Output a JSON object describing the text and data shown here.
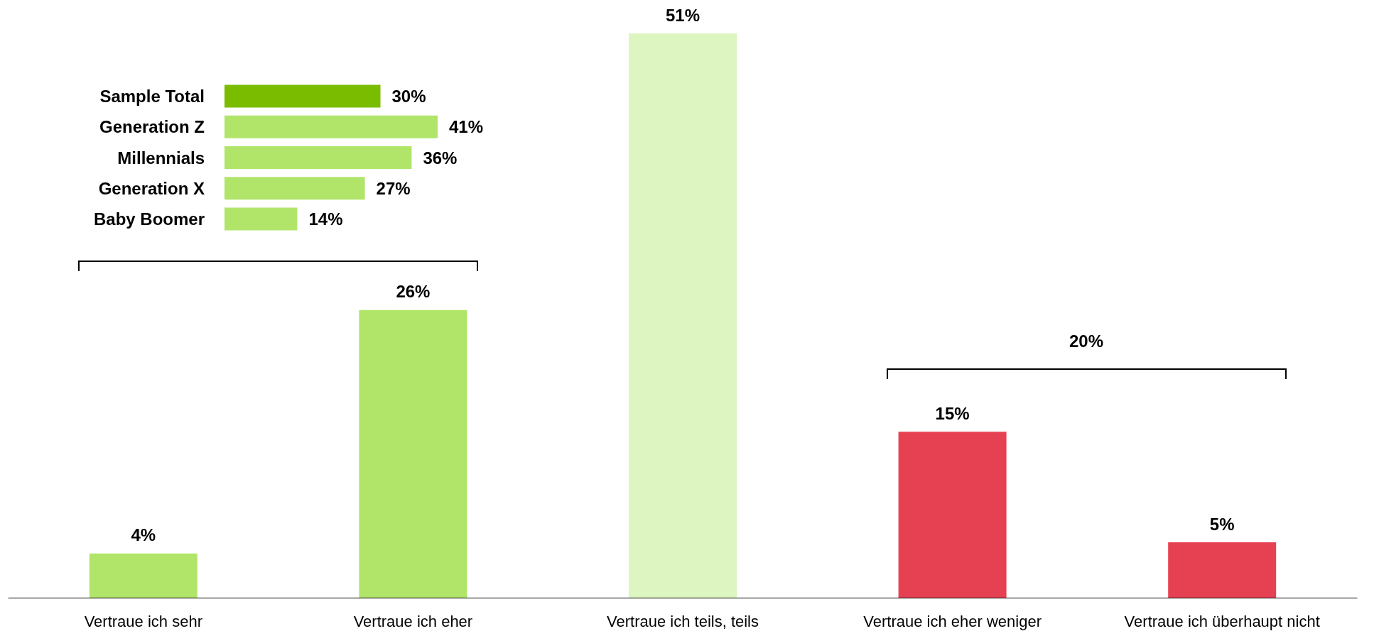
{
  "chart_data": [
    {
      "type": "bar",
      "categories": [
        "Vertraue ich sehr",
        "Vertraue ich eher",
        "Vertraue ich teils, teils",
        "Vertraue ich eher weniger",
        "Vertraue ich überhaupt nicht"
      ],
      "values": [
        4,
        26,
        51,
        15,
        5
      ],
      "colors": [
        "#b1e56a",
        "#b1e56a",
        "#ddf5c0",
        "#e64152",
        "#e64152"
      ],
      "value_labels": [
        "4%",
        "26%",
        "51%",
        "15%",
        "5%"
      ],
      "annotations": [
        "20%"
      ]
    },
    {
      "type": "bar",
      "orientation": "horizontal",
      "categories": [
        "Sample Total",
        "Generation Z",
        "Millennials",
        "Generation X",
        "Baby Boomer"
      ],
      "values": [
        30,
        41,
        36,
        27,
        14
      ],
      "colors": [
        "#7abd00",
        "#b1e56a",
        "#b1e56a",
        "#b1e56a",
        "#b1e56a"
      ],
      "value_labels": [
        "30%",
        "41%",
        "36%",
        "27%",
        "14%"
      ]
    }
  ]
}
